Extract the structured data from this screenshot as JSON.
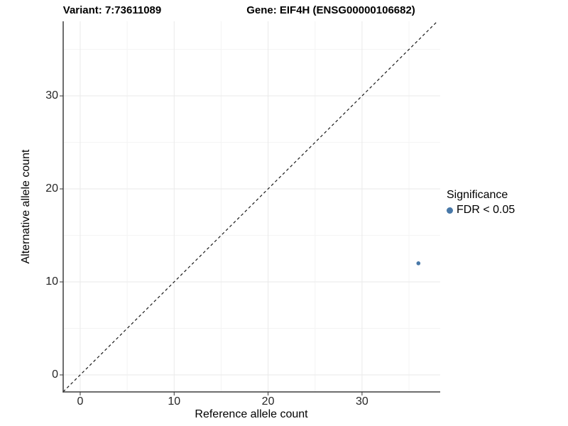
{
  "figure": {
    "background": "#ffffff"
  },
  "chart_data": {
    "type": "scatter",
    "titles": {
      "left": "Variant: 7:73611089",
      "right": "Gene: EIF4H (ENSG00000106682)"
    },
    "xlabel": "Reference allele count",
    "ylabel": "Alternative allele count",
    "xlim": [
      -1.81,
      38.32
    ],
    "ylim": [
      -1.83,
      38.02
    ],
    "x_major_ticks": [
      0,
      10,
      20,
      30
    ],
    "y_major_ticks": [
      0,
      10,
      20,
      30
    ],
    "x_minor_ticks": [
      5,
      15,
      25,
      35
    ],
    "y_minor_ticks": [
      5,
      15,
      25,
      35
    ],
    "grid": true,
    "identity_line": {
      "style": "dashed",
      "equation": "y = x"
    },
    "series": [
      {
        "name": "FDR < 0.05",
        "color": "#4878a8",
        "marker": "circle",
        "points": [
          {
            "x": 36,
            "y": 12
          }
        ]
      }
    ],
    "legend": {
      "title": "Significance",
      "position": "right",
      "items": [
        {
          "label": "FDR < 0.05",
          "color": "#4878a8",
          "marker": "circle"
        }
      ]
    },
    "colors": {
      "axis": "#3f3f3f",
      "tick_mark": "#333333",
      "tick_label": "#262626",
      "grid_major": "#e9e9e9",
      "grid_minor": "#f4f4f4",
      "identity_line": "#1a1a1a",
      "point": "#4878a8"
    }
  }
}
